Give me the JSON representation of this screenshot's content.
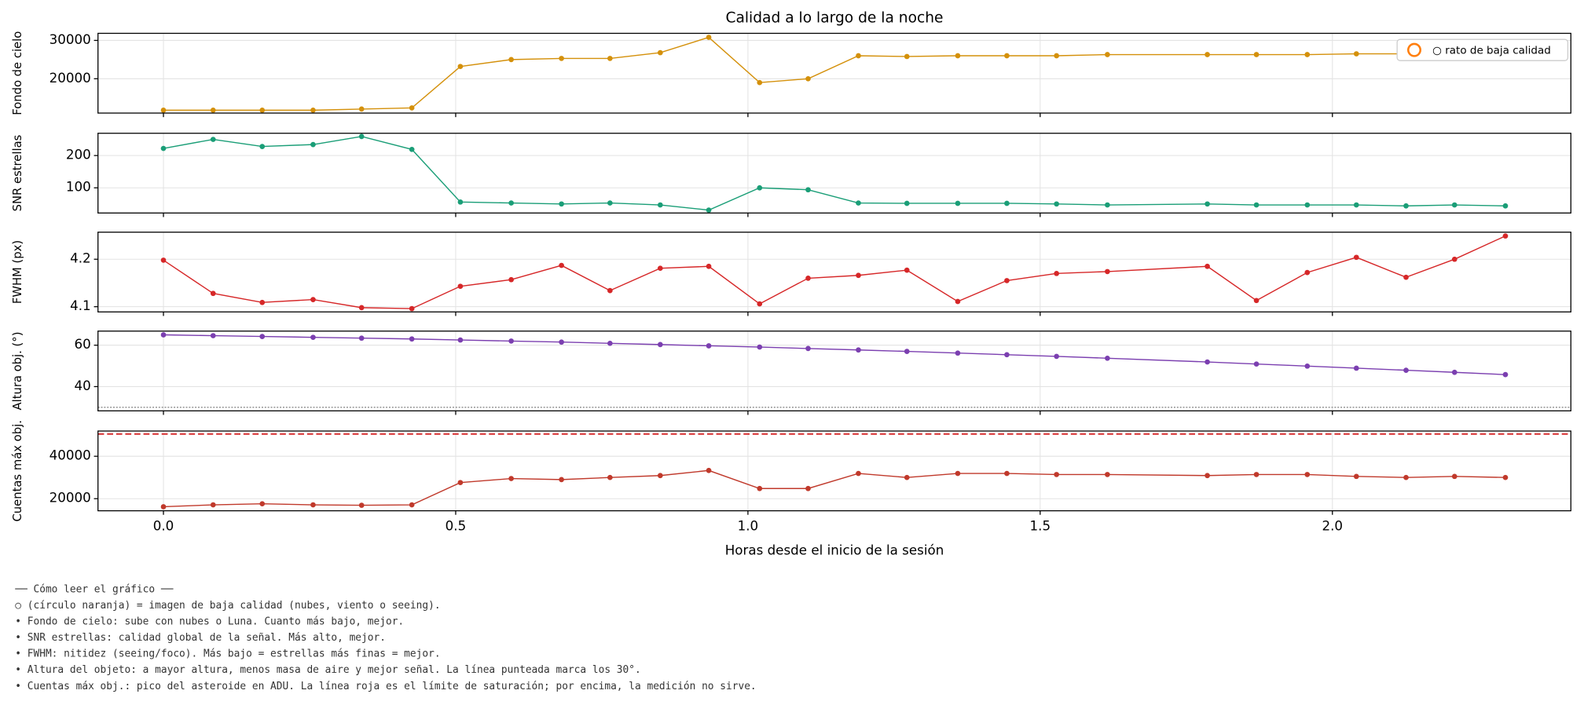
{
  "chart_data": [
    {
      "type": "line",
      "title": "Calidad a lo largo de la noche",
      "ylabel": "Fondo de cielo",
      "color": "#d4900a",
      "x": [
        0,
        0.085,
        0.169,
        0.256,
        0.339,
        0.425,
        0.508,
        0.595,
        0.681,
        0.764,
        0.85,
        0.933,
        1.02,
        1.103,
        1.189,
        1.272,
        1.359,
        1.443,
        1.528,
        1.615,
        1.786,
        1.87,
        1.957,
        2.041,
        2.126,
        2.209,
        2.296
      ],
      "values": [
        11800,
        11800,
        11800,
        11800,
        12100,
        12400,
        23200,
        25000,
        25300,
        25300,
        26800,
        30800,
        19000,
        20000,
        26000,
        25800,
        26000,
        26000,
        26000,
        26300,
        26300,
        26300,
        26300,
        26500,
        26500,
        26500,
        26500
      ],
      "xlim": [
        -0.112,
        2.408
      ],
      "ylim": [
        11050,
        31840
      ],
      "xticks": [
        {
          "value": 0,
          "label": "0.0"
        },
        0.5,
        {
          "value": 1,
          "label": "1.0"
        },
        1.5,
        {
          "value": 2,
          "label": "2.0"
        }
      ],
      "yticks": [
        20000,
        30000
      ],
      "grid": true,
      "legend": {
        "label": "○ rato de baja calidad",
        "color": "#ff7f0e",
        "position": "upper right"
      }
    },
    {
      "type": "line",
      "ylabel": "SNR estrellas",
      "color": "#1a9e77",
      "x": [
        0,
        0.085,
        0.169,
        0.256,
        0.339,
        0.425,
        0.508,
        0.595,
        0.681,
        0.764,
        0.85,
        0.933,
        1.02,
        1.103,
        1.189,
        1.272,
        1.359,
        1.443,
        1.528,
        1.615,
        1.786,
        1.87,
        1.957,
        2.041,
        2.126,
        2.209,
        2.296
      ],
      "values": [
        222,
        250,
        228,
        234,
        259,
        219,
        56,
        53,
        50,
        53,
        47,
        31,
        100,
        94,
        53,
        52,
        52,
        52,
        50,
        47,
        50,
        47,
        47,
        47,
        44,
        47,
        44
      ],
      "xlim": [
        -0.112,
        2.408
      ],
      "ylim": [
        22,
        269
      ],
      "xticks": [
        {
          "value": 0,
          "label": "0.0"
        },
        0.5,
        {
          "value": 1,
          "label": "1.0"
        },
        1.5,
        {
          "value": 2,
          "label": "2.0"
        }
      ],
      "yticks": [
        100,
        200
      ],
      "grid": true
    },
    {
      "type": "line",
      "ylabel": "FWHM (px)",
      "color": "#d62728",
      "x": [
        0,
        0.085,
        0.169,
        0.256,
        0.339,
        0.425,
        0.508,
        0.595,
        0.681,
        0.764,
        0.85,
        0.933,
        1.02,
        1.103,
        1.189,
        1.272,
        1.359,
        1.443,
        1.528,
        1.615,
        1.786,
        1.87,
        1.957,
        2.041,
        2.126,
        2.209,
        2.296
      ],
      "values": [
        4.198,
        4.128,
        4.109,
        4.115,
        4.098,
        4.096,
        4.143,
        4.157,
        4.187,
        4.134,
        4.181,
        4.185,
        4.106,
        4.16,
        4.166,
        4.177,
        4.111,
        4.155,
        4.17,
        4.174,
        4.185,
        4.113,
        4.172,
        4.204,
        4.162,
        4.2,
        4.249
      ],
      "xlim": [
        -0.112,
        2.408
      ],
      "ylim": [
        4.089,
        4.257
      ],
      "xticks": [
        {
          "value": 0,
          "label": "0.0"
        },
        0.5,
        {
          "value": 1,
          "label": "1.0"
        },
        1.5,
        {
          "value": 2,
          "label": "2.0"
        }
      ],
      "yticks": [
        4.1,
        4.2
      ],
      "grid": true
    },
    {
      "type": "line",
      "ylabel": "Altura obj. (°)",
      "color": "#7b3fb0",
      "x": [
        0,
        0.085,
        0.169,
        0.256,
        0.339,
        0.425,
        0.508,
        0.595,
        0.681,
        0.764,
        0.85,
        0.933,
        1.02,
        1.103,
        1.189,
        1.272,
        1.359,
        1.443,
        1.528,
        1.615,
        1.786,
        1.87,
        1.957,
        2.041,
        2.126,
        2.209,
        2.296
      ],
      "values": [
        65,
        64.6,
        64.2,
        63.8,
        63.4,
        63,
        62.5,
        62,
        61.5,
        60.9,
        60.3,
        59.7,
        59.1,
        58.4,
        57.7,
        57,
        56.2,
        55.4,
        54.6,
        53.7,
        51.9,
        50.9,
        49.9,
        48.9,
        47.9,
        46.9,
        45.8
      ],
      "xlim": [
        -0.112,
        2.408
      ],
      "ylim": [
        28.3,
        66.8
      ],
      "xticks": [
        {
          "value": 0,
          "label": "0.0"
        },
        0.5,
        {
          "value": 1,
          "label": "1.0"
        },
        1.5,
        {
          "value": 2,
          "label": "2.0"
        }
      ],
      "yticks": [
        40,
        60
      ],
      "grid": true,
      "hlines": [
        {
          "value": 30,
          "color": "#888888",
          "style": "dotted"
        }
      ]
    },
    {
      "type": "line",
      "ylabel": "Cuentas máx obj.",
      "xlabel": "Horas desde el inicio de la sesión",
      "color": "#c0392b",
      "x": [
        0,
        0.085,
        0.169,
        0.256,
        0.339,
        0.425,
        0.508,
        0.595,
        0.681,
        0.764,
        0.85,
        0.933,
        1.02,
        1.103,
        1.189,
        1.272,
        1.359,
        1.443,
        1.528,
        1.615,
        1.786,
        1.87,
        1.957,
        2.041,
        2.126,
        2.209,
        2.296
      ],
      "values": [
        16200,
        17100,
        17600,
        17100,
        16900,
        17100,
        27600,
        29500,
        29000,
        30000,
        30900,
        33300,
        24800,
        24800,
        31900,
        30000,
        31900,
        31900,
        31400,
        31400,
        30900,
        31400,
        31400,
        30500,
        30000,
        30500,
        30000
      ],
      "xlim": [
        -0.112,
        2.408
      ],
      "ylim": [
        14300,
        51900
      ],
      "xticks": [
        {
          "value": 0,
          "label": "0.0"
        },
        0.5,
        {
          "value": 1,
          "label": "1.0"
        },
        1.5,
        {
          "value": 2,
          "label": "2.0"
        }
      ],
      "yticks": [
        20000,
        40000
      ],
      "grid": true,
      "hlines": [
        {
          "value": 50500,
          "color": "#d62728",
          "style": "dashed"
        }
      ]
    }
  ],
  "notes": [
    "── Cómo leer el gráfico ──",
    "○ (círculo naranja) = imagen de baja calidad (nubes, viento o seeing).",
    "• Fondo de cielo: sube con nubes o Luna. Cuanto más bajo, mejor.",
    "• SNR estrellas: calidad global de la señal. Más alto, mejor.",
    "• FWHM: nitidez (seeing/foco). Más bajo = estrellas más finas = mejor.",
    "• Altura del objeto: a mayor altura, menos masa de aire y mejor señal. La línea punteada marca los 30°.",
    "• Cuentas máx obj.: pico del asteroide en ADU. La línea roja es el límite de saturación; por encima, la medición no sirve."
  ]
}
